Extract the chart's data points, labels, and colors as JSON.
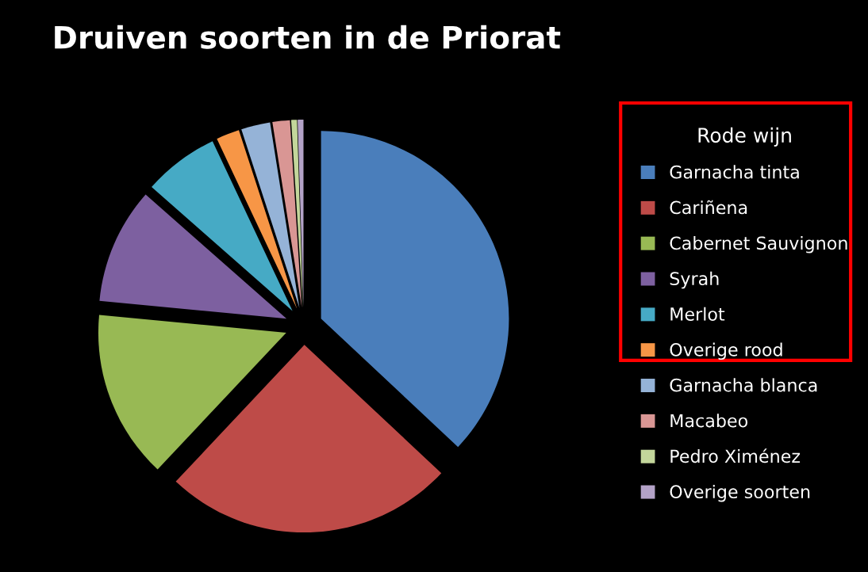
{
  "chart_data": {
    "type": "pie",
    "title": "Druiven soorten in de Priorat",
    "legend_title": "Rode wijn",
    "legend": "right",
    "categories": [
      "Garnacha tinta",
      "Cariñena",
      "Cabernet Sauvignon",
      "Syrah",
      "Merlot",
      "Overige rood",
      "Garnacha blanca",
      "Macabeo",
      "Pedro Ximénez",
      "Overige soorten"
    ],
    "values": [
      37,
      25,
      14.5,
      10,
      6.5,
      2,
      2.5,
      1.5,
      0.5,
      0.5
    ],
    "colors": [
      "#4a7ebb",
      "#be4b48",
      "#98b954",
      "#7d60a0",
      "#46aac5",
      "#f79646",
      "#95b3d7",
      "#d99694",
      "#c3d69b",
      "#b3a2c7"
    ]
  }
}
